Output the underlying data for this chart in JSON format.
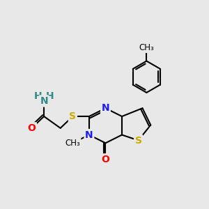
{
  "background_color": "#e8e8e8",
  "atom_colors": {
    "C": "#000000",
    "N": "#1a1aff",
    "O": "#ff0000",
    "S": "#ccaa00",
    "H": "#2e8b8b"
  },
  "bond_color": "#000000",
  "bond_lw": 1.5,
  "font_size": 10,
  "figsize": [
    3.0,
    3.0
  ],
  "dpi": 100
}
